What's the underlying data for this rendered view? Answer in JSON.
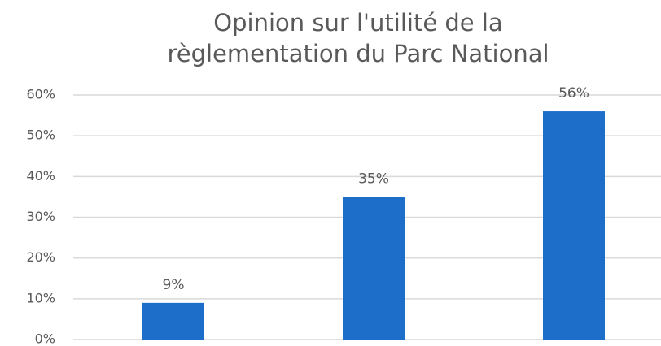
{
  "chart_data": {
    "type": "bar",
    "title": [
      "Opinion sur l'utilité de la",
      "règlementation du Parc National"
    ],
    "categories": [
      null,
      null,
      null
    ],
    "values": [
      9,
      35,
      56
    ],
    "value_labels": [
      "9%",
      "35%",
      "56%"
    ],
    "color": "#1c6ec9",
    "ylim": [
      0,
      60
    ],
    "yticks": [
      {
        "value": 0,
        "label": "0%"
      },
      {
        "value": 10,
        "label": "10%"
      },
      {
        "value": 20,
        "label": "20%"
      },
      {
        "value": 30,
        "label": "30%"
      },
      {
        "value": 40,
        "label": "40%"
      },
      {
        "value": 50,
        "label": "50%"
      },
      {
        "value": 60,
        "label": "60%"
      }
    ],
    "grid": true
  }
}
